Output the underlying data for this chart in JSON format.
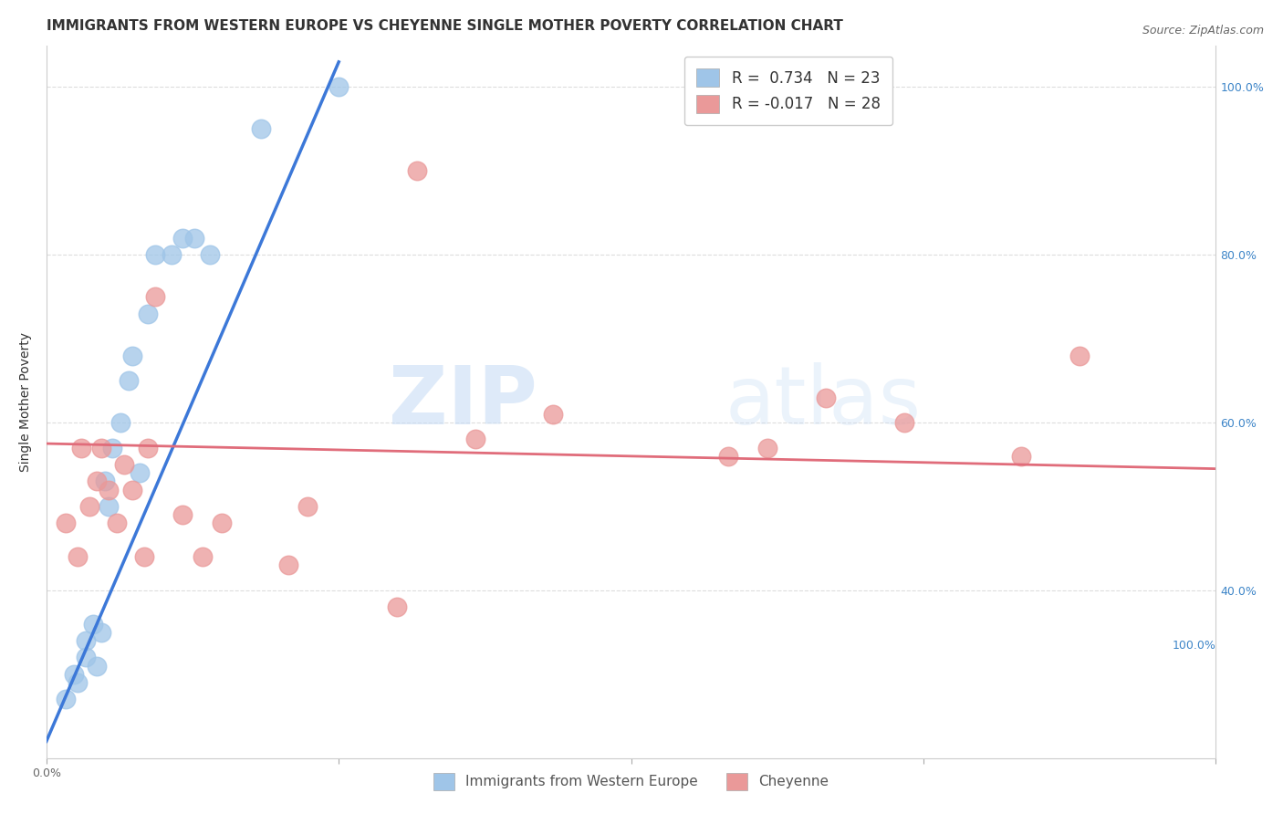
{
  "title": "IMMIGRANTS FROM WESTERN EUROPE VS CHEYENNE SINGLE MOTHER POVERTY CORRELATION CHART",
  "source": "Source: ZipAtlas.com",
  "ylabel": "Single Mother Poverty",
  "blue_color": "#9fc5e8",
  "pink_color": "#ea9999",
  "blue_line_color": "#3c78d8",
  "pink_line_color": "#e06c7a",
  "blue_scatter_x": [
    0.005,
    0.007,
    0.008,
    0.01,
    0.01,
    0.012,
    0.013,
    0.014,
    0.015,
    0.016,
    0.017,
    0.019,
    0.021,
    0.022,
    0.024,
    0.026,
    0.028,
    0.032,
    0.035,
    0.038,
    0.042,
    0.055,
    0.075
  ],
  "blue_scatter_y": [
    0.27,
    0.3,
    0.29,
    0.32,
    0.34,
    0.36,
    0.31,
    0.35,
    0.53,
    0.5,
    0.57,
    0.6,
    0.65,
    0.68,
    0.54,
    0.73,
    0.8,
    0.8,
    0.82,
    0.82,
    0.8,
    0.95,
    1.0
  ],
  "pink_scatter_x": [
    0.005,
    0.008,
    0.009,
    0.011,
    0.013,
    0.014,
    0.016,
    0.018,
    0.02,
    0.022,
    0.025,
    0.026,
    0.028,
    0.035,
    0.04,
    0.045,
    0.062,
    0.067,
    0.09,
    0.095,
    0.11,
    0.13,
    0.175,
    0.185,
    0.2,
    0.22,
    0.25,
    0.265
  ],
  "pink_scatter_y": [
    0.48,
    0.44,
    0.57,
    0.5,
    0.53,
    0.57,
    0.52,
    0.48,
    0.55,
    0.52,
    0.44,
    0.57,
    0.75,
    0.49,
    0.44,
    0.48,
    0.43,
    0.5,
    0.38,
    0.9,
    0.58,
    0.61,
    0.56,
    0.57,
    0.63,
    0.6,
    0.56,
    0.68
  ],
  "blue_line_x": [
    0.0,
    0.075
  ],
  "blue_line_y": [
    0.22,
    1.03
  ],
  "pink_line_x": [
    0.0,
    0.3
  ],
  "pink_line_y": [
    0.575,
    0.545
  ],
  "legend_label1": "R =  0.734   N = 23",
  "legend_label2": "R = -0.017   N = 28",
  "bottom_label1": "Immigrants from Western Europe",
  "bottom_label2": "Cheyenne",
  "xlim": [
    0.0,
    0.3
  ],
  "ylim": [
    0.2,
    1.05
  ],
  "xtick_positions": [
    0.0,
    0.075,
    0.15,
    0.225,
    0.3
  ],
  "xticklabels": [
    "0.0%",
    "",
    "",
    "",
    ""
  ],
  "right_yticks": [
    0.4,
    0.6,
    0.8,
    1.0
  ],
  "right_yticklabels": [
    "40.0%",
    "60.0%",
    "80.0%",
    "100.0%"
  ],
  "grid_color": "#dddddd",
  "title_fontsize": 11,
  "tick_fontsize": 9,
  "legend_fontsize": 12,
  "watermark_zip_color": "#c8ddf5",
  "watermark_atlas_color": "#c8ddf5"
}
